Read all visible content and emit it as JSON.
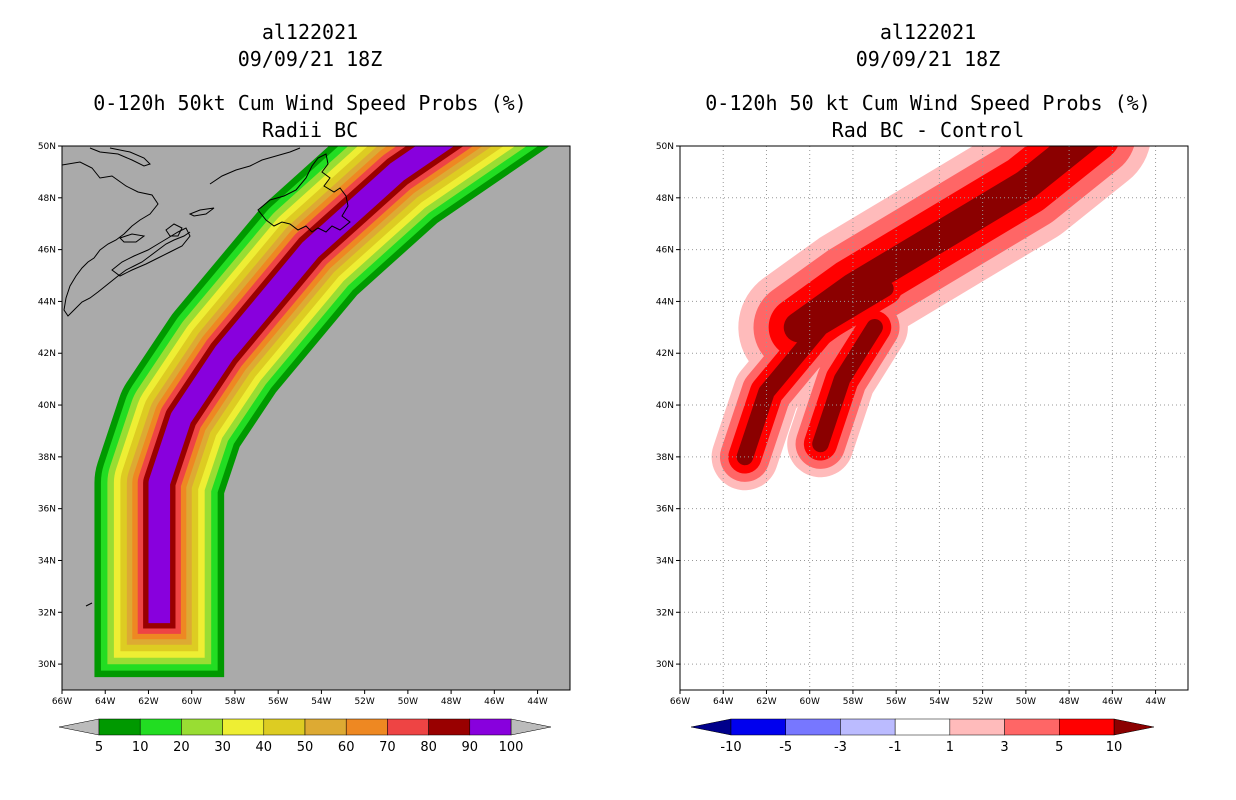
{
  "left_panel": {
    "storm": "al122021",
    "datetime": "09/09/21 18Z",
    "title": "0-120h 50kt Cum Wind Speed Probs (%)",
    "subtitle": "Radii BC"
  },
  "right_panel": {
    "storm": "al122021",
    "datetime": "09/09/21 18Z",
    "title": "0-120h 50 kt Cum Wind Speed Probs (%)",
    "subtitle": "Rad BC - Control"
  },
  "chart_data": [
    {
      "type": "heatmap",
      "name": "left-probability-map",
      "x_axis": {
        "ticks": [
          "66W",
          "64W",
          "62W",
          "60W",
          "58W",
          "56W",
          "54W",
          "52W",
          "50W",
          "48W",
          "46W",
          "44W"
        ],
        "range_deg_west": [
          66,
          42.5
        ]
      },
      "y_axis": {
        "ticks": [
          "30N",
          "32N",
          "34N",
          "36N",
          "38N",
          "40N",
          "42N",
          "44N",
          "46N",
          "48N",
          "50N"
        ],
        "range_deg_north": [
          29,
          50
        ]
      },
      "background_color": "#aaaaaa",
      "grid": false,
      "colorbar": {
        "labels": [
          "5",
          "10",
          "20",
          "30",
          "40",
          "50",
          "60",
          "70",
          "80",
          "90",
          "100"
        ],
        "colors": [
          "#009900",
          "#22dd22",
          "#99dd33",
          "#eeee33",
          "#ddcc22",
          "#ddaa33",
          "#ee8822",
          "#ee4444",
          "#990000",
          "#8800dd"
        ],
        "under_color": "#bbbbbb",
        "over_color": "#bbbbbb"
      },
      "track": {
        "lon_west": [
          61.5,
          61.5,
          60.5,
          58.5,
          54.5,
          50.5,
          47
        ],
        "lat_north": [
          32,
          37,
          39.5,
          42,
          46,
          49,
          51
        ]
      },
      "band_half_widths_deg": [
        3.0,
        2.7,
        2.4,
        2.1,
        1.8,
        1.5,
        1.25,
        1.0,
        0.75,
        0.5
      ]
    },
    {
      "type": "heatmap",
      "name": "right-difference-map",
      "x_axis": {
        "ticks": [
          "66W",
          "64W",
          "62W",
          "60W",
          "58W",
          "56W",
          "54W",
          "52W",
          "50W",
          "48W",
          "46W",
          "44W"
        ],
        "range_deg_west": [
          66,
          42.5
        ]
      },
      "y_axis": {
        "ticks": [
          "30N",
          "32N",
          "34N",
          "36N",
          "38N",
          "40N",
          "42N",
          "44N",
          "46N",
          "48N",
          "50N"
        ],
        "range_deg_north": [
          29,
          50
        ]
      },
      "background_color": "#ffffff",
      "grid": true,
      "colorbar": {
        "labels": [
          "-10",
          "-5",
          "-3",
          "-1",
          "1",
          "3",
          "5",
          "10"
        ],
        "colors": [
          "#0000ee",
          "#7777ff",
          "#bbbbff",
          "#ffffff",
          "#ffbbbb",
          "#ff6666",
          "#ff0000"
        ],
        "under_color": "#00008b",
        "over_color": "#8b0000"
      },
      "main_band": {
        "lon_west": [
          60.5,
          58,
          54,
          50,
          47
        ],
        "lat_north": [
          43,
          44.5,
          46.5,
          48.5,
          50.5
        ]
      },
      "finger_west": {
        "lon_west": [
          63,
          62,
          59.5,
          56.5
        ],
        "lat_north": [
          38,
          40.5,
          43,
          44.5
        ]
      },
      "finger_east": {
        "lon_west": [
          59.5,
          58.5,
          57
        ],
        "lat_north": [
          38.5,
          41,
          43
        ]
      },
      "band_half_widths_deg": [
        2.8,
        2.1,
        1.4,
        0.7
      ]
    }
  ]
}
